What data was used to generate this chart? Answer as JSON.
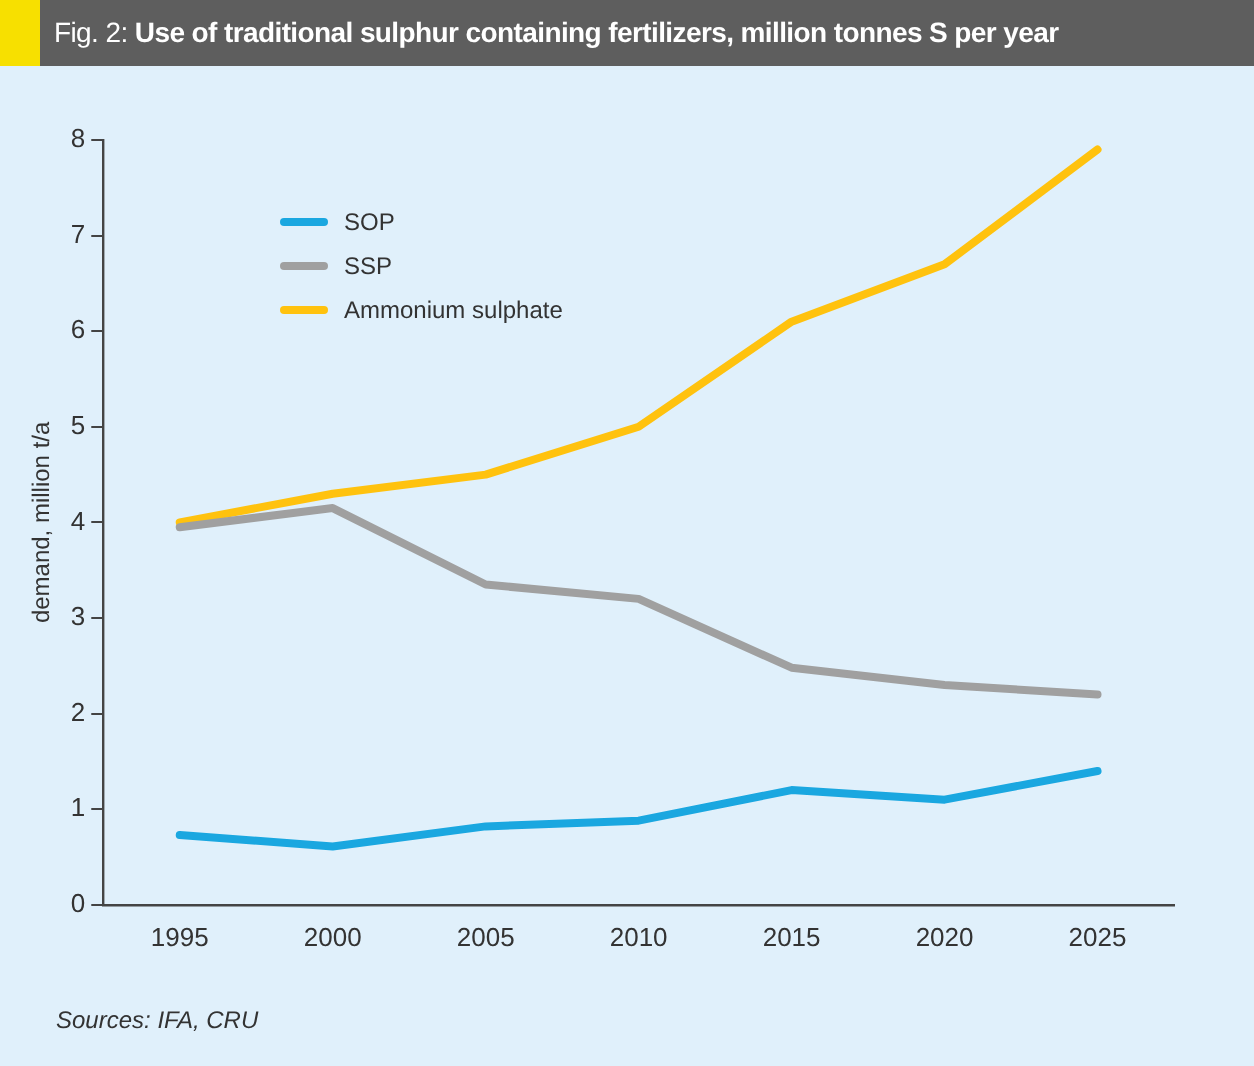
{
  "chart_data": {
    "type": "line",
    "title": "Fig. 2: Use of traditional sulphur containing fertilizers, million tonnes S per year",
    "ylabel": "demand, million t/a",
    "categories": [
      "1995",
      "2000",
      "2005",
      "2010",
      "2015",
      "2020",
      "2025"
    ],
    "series": [
      {
        "name": "SOP",
        "color": "#1aa7e0",
        "values": [
          0.73,
          0.61,
          0.82,
          0.88,
          1.2,
          1.1,
          1.4
        ]
      },
      {
        "name": "SSP",
        "color": "#a0a0a0",
        "values": [
          3.95,
          4.15,
          3.35,
          3.2,
          2.48,
          2.3,
          2.2
        ]
      },
      {
        "name": "Ammonium sulphate",
        "color": "#ffc20e",
        "values": [
          4.0,
          4.3,
          4.5,
          5.0,
          6.1,
          6.7,
          7.9
        ]
      }
    ],
    "ylim": [
      0,
      8
    ],
    "yticks": [
      0,
      1,
      2,
      3,
      4,
      5,
      6,
      7,
      8
    ],
    "grid": false,
    "legend": "top left",
    "marker": "none",
    "line_style": "solid",
    "annotations": [
      "Sources: IFA, CRU"
    ]
  }
}
